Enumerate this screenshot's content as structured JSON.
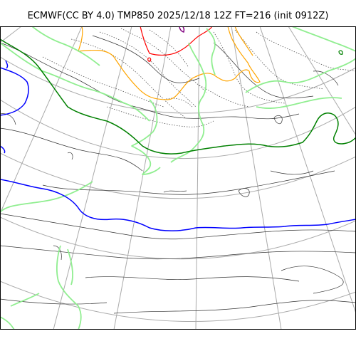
{
  "title": "ECMWF(CC BY 4.0) TMP850 2025/12/18 12Z FT=216 (init 0912Z)",
  "colors": {
    "background": "#ffffff",
    "frame": "#000000",
    "graticule": "#aaaaaa",
    "coastline": "#000000",
    "isotherm_dotted": "#555555",
    "isotherm_purple": "#800080",
    "isotherm_red": "#ff0000",
    "isotherm_orange": "#ffa500",
    "isotherm_lightgreen": "#90ee90",
    "isotherm_green": "#008000",
    "isotherm_blue": "#0000ff"
  },
  "legend": []
}
